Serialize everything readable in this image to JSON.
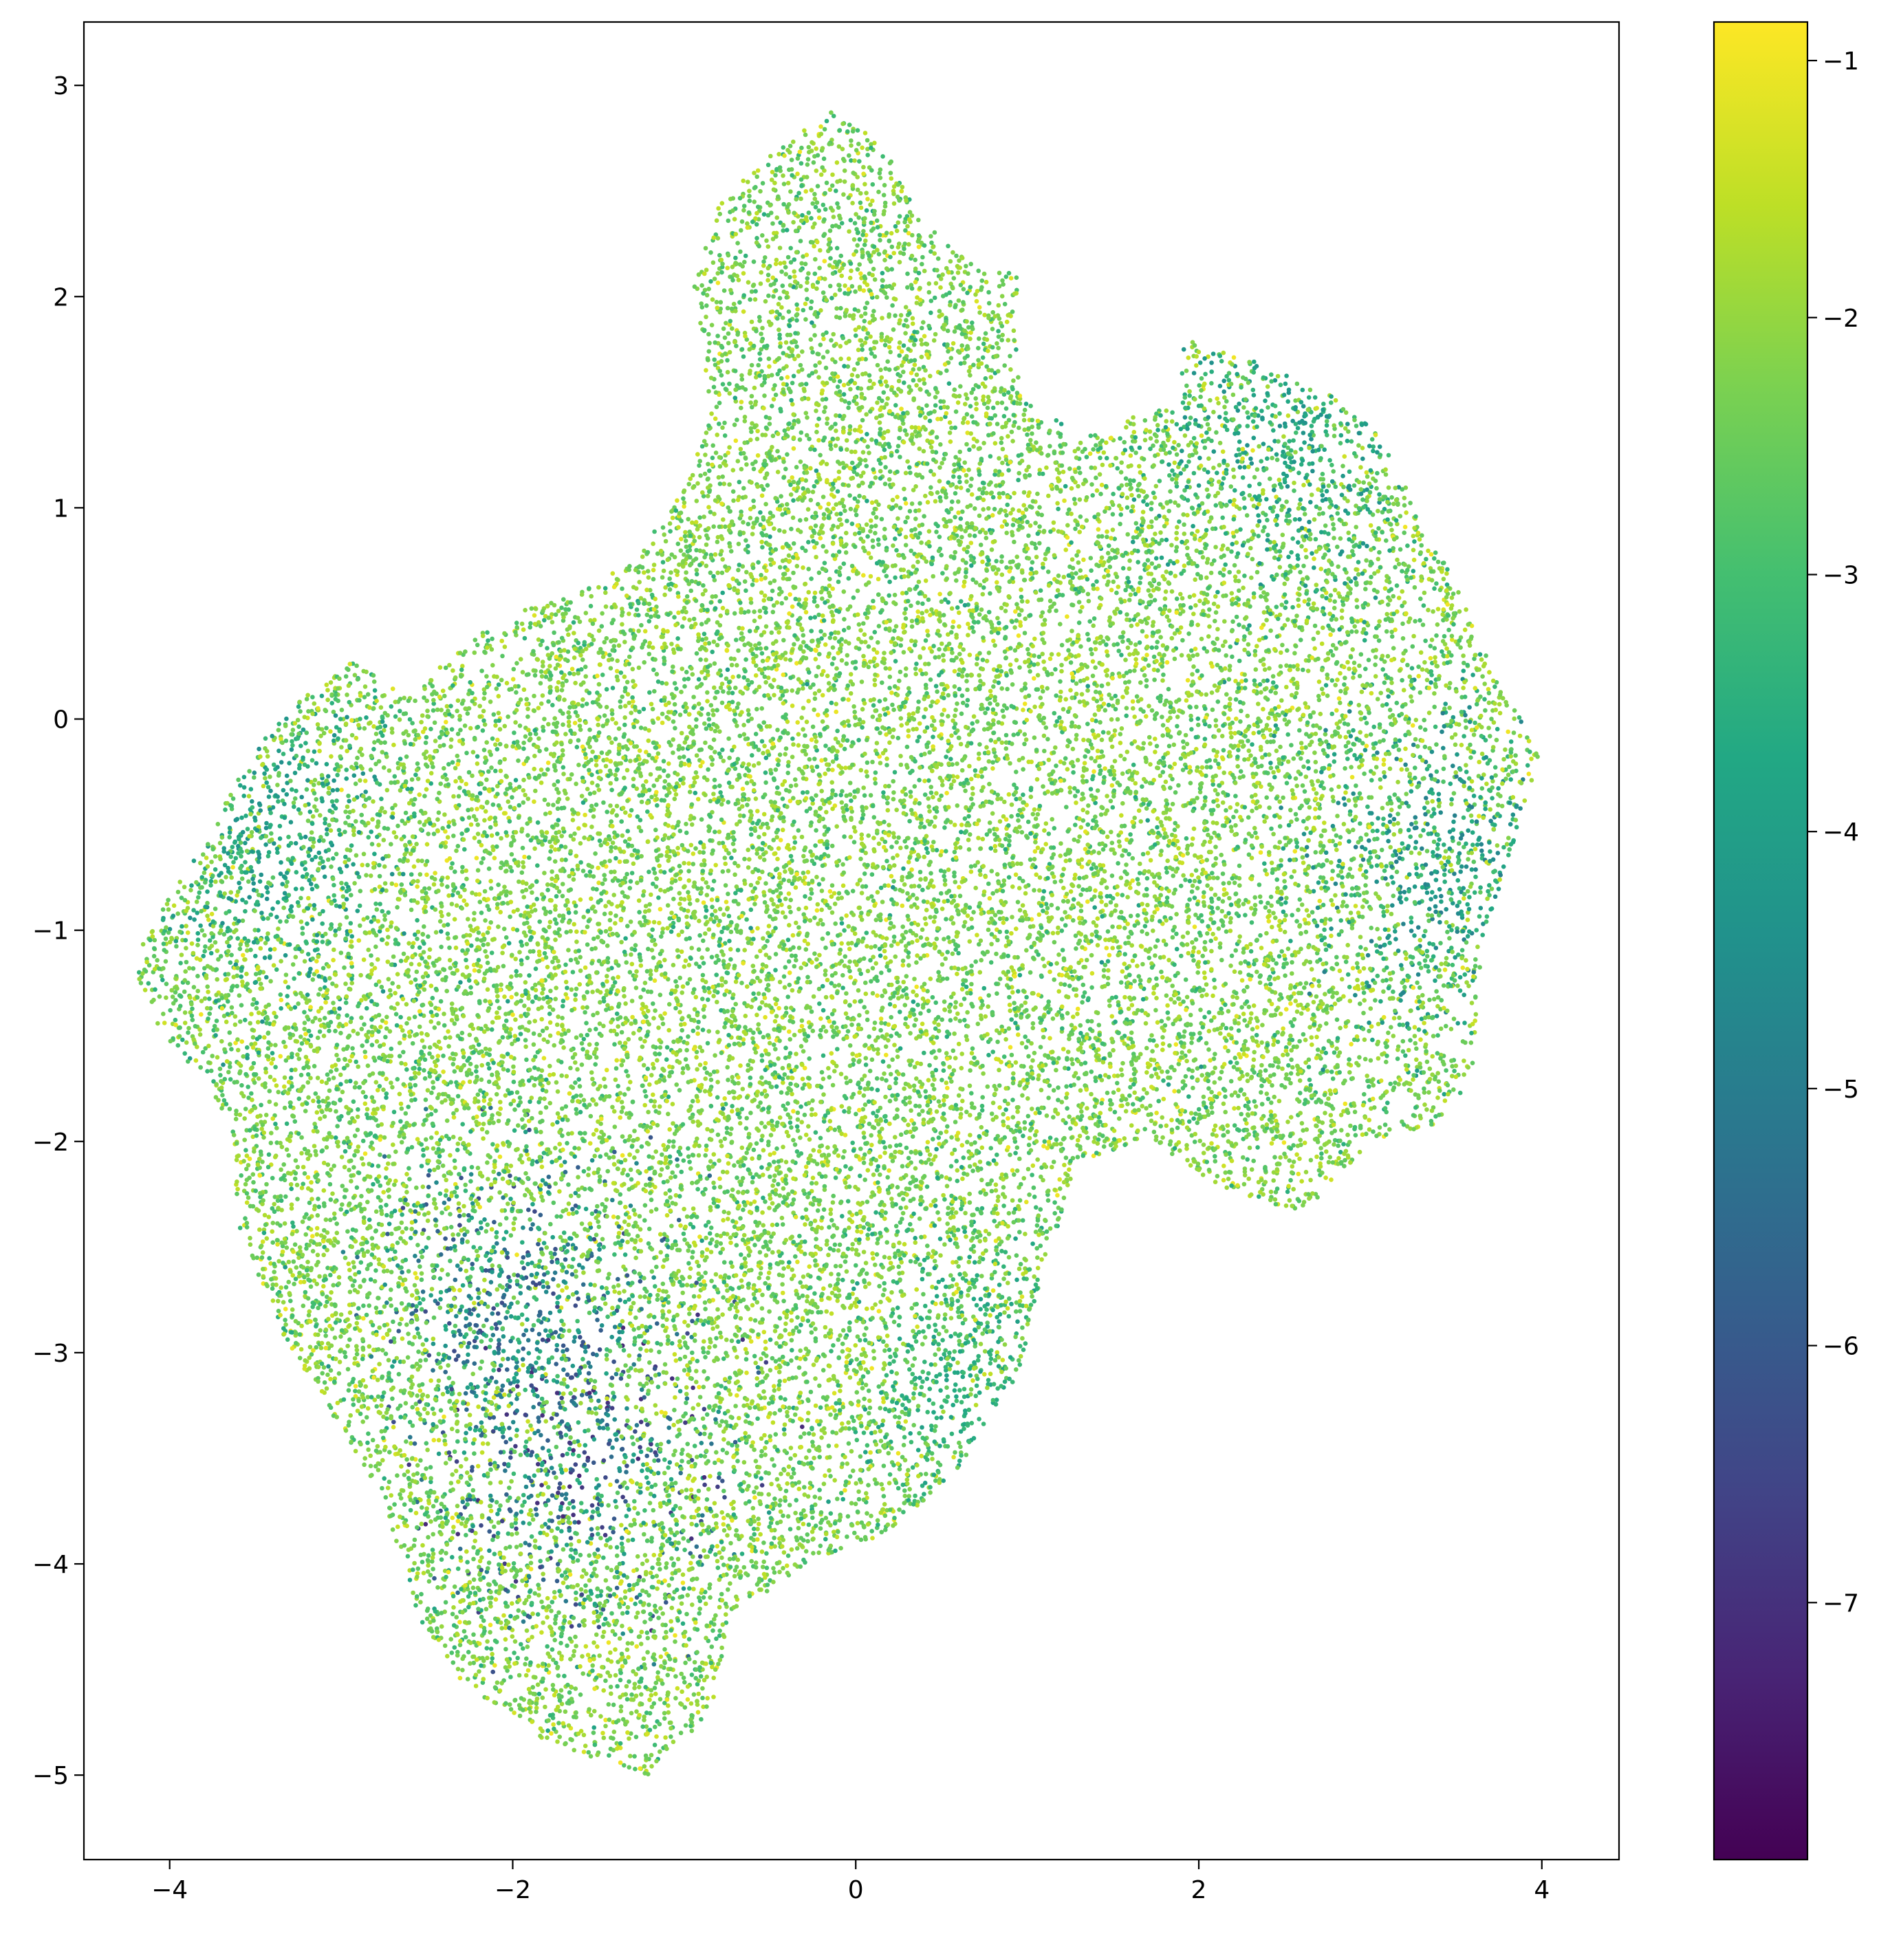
{
  "chart_data": {
    "type": "scatter",
    "title": "",
    "xlabel": "",
    "ylabel": "",
    "xlim": [
      -4.5,
      4.45
    ],
    "ylim": [
      -5.4,
      3.3
    ],
    "x_ticks": [
      -4,
      -2,
      0,
      2,
      4
    ],
    "x_tick_labels": [
      "−4",
      "−2",
      "0",
      "2",
      "4"
    ],
    "y_ticks": [
      3,
      2,
      1,
      0,
      -1,
      -2,
      -3,
      -4,
      -5
    ],
    "y_tick_labels": [
      "3",
      "2",
      "1",
      "0",
      "−1",
      "−2",
      "−3",
      "−4",
      "−5"
    ],
    "grid": false,
    "legend": "none",
    "point_count_approx": 26000,
    "colorbar": {
      "colormap": "viridis",
      "range": [
        -8.0,
        -0.85
      ],
      "ticks": [
        -1,
        -2,
        -3,
        -4,
        -5,
        -6,
        -7
      ],
      "tick_labels": [
        "−1",
        "−2",
        "−3",
        "−4",
        "−5",
        "−6",
        "−7"
      ]
    },
    "point_cloud_outline": [
      [
        -4.18,
        -1.05
      ],
      [
        -3.85,
        -0.65
      ],
      [
        -3.55,
        -0.2
      ],
      [
        -3.3,
        0.05
      ],
      [
        -2.95,
        0.28
      ],
      [
        -2.6,
        0.1
      ],
      [
        -2.3,
        0.35
      ],
      [
        -2.0,
        0.5
      ],
      [
        -1.6,
        0.6
      ],
      [
        -1.3,
        0.75
      ],
      [
        -1.0,
        1.1
      ],
      [
        -0.85,
        1.5
      ],
      [
        -0.95,
        2.05
      ],
      [
        -0.8,
        2.45
      ],
      [
        -0.45,
        2.7
      ],
      [
        -0.15,
        2.88
      ],
      [
        0.15,
        2.75
      ],
      [
        0.35,
        2.4
      ],
      [
        0.6,
        2.2
      ],
      [
        0.95,
        2.1
      ],
      [
        0.95,
        1.55
      ],
      [
        1.3,
        1.35
      ],
      [
        1.9,
        1.5
      ],
      [
        1.9,
        1.8
      ],
      [
        2.3,
        1.7
      ],
      [
        2.75,
        1.55
      ],
      [
        3.05,
        1.35
      ],
      [
        3.3,
        0.95
      ],
      [
        3.55,
        0.55
      ],
      [
        3.75,
        0.15
      ],
      [
        4.0,
        -0.15
      ],
      [
        3.85,
        -0.55
      ],
      [
        3.65,
        -1.05
      ],
      [
        3.6,
        -1.65
      ],
      [
        3.45,
        -1.9
      ],
      [
        3.0,
        -2.0
      ],
      [
        2.6,
        -2.35
      ],
      [
        2.1,
        -2.2
      ],
      [
        1.7,
        -2.0
      ],
      [
        1.3,
        -2.1
      ],
      [
        1.1,
        -2.6
      ],
      [
        0.95,
        -3.1
      ],
      [
        0.6,
        -3.55
      ],
      [
        0.2,
        -3.85
      ],
      [
        -0.3,
        -4.0
      ],
      [
        -0.7,
        -4.25
      ],
      [
        -0.85,
        -4.7
      ],
      [
        -1.2,
        -5.0
      ],
      [
        -1.8,
        -4.85
      ],
      [
        -2.3,
        -4.55
      ],
      [
        -2.55,
        -4.25
      ],
      [
        -2.75,
        -3.7
      ],
      [
        -3.05,
        -3.3
      ],
      [
        -3.35,
        -2.9
      ],
      [
        -3.6,
        -2.4
      ],
      [
        -3.65,
        -1.9
      ],
      [
        -3.95,
        -1.6
      ],
      [
        -4.18,
        -1.3
      ]
    ],
    "dense_dark_regions": [
      {
        "x": -1.6,
        "y": -3.5,
        "min_value": -7.2
      },
      {
        "x": -2.0,
        "y": -2.8,
        "min_value": -6.5
      },
      {
        "x": -3.4,
        "y": -0.6,
        "min_value": -4.5
      },
      {
        "x": 3.45,
        "y": -0.7,
        "min_value": -5.0
      },
      {
        "x": 2.5,
        "y": 1.4,
        "min_value": -4.5
      },
      {
        "x": 0.75,
        "y": -3.2,
        "min_value": -4.0
      }
    ]
  }
}
